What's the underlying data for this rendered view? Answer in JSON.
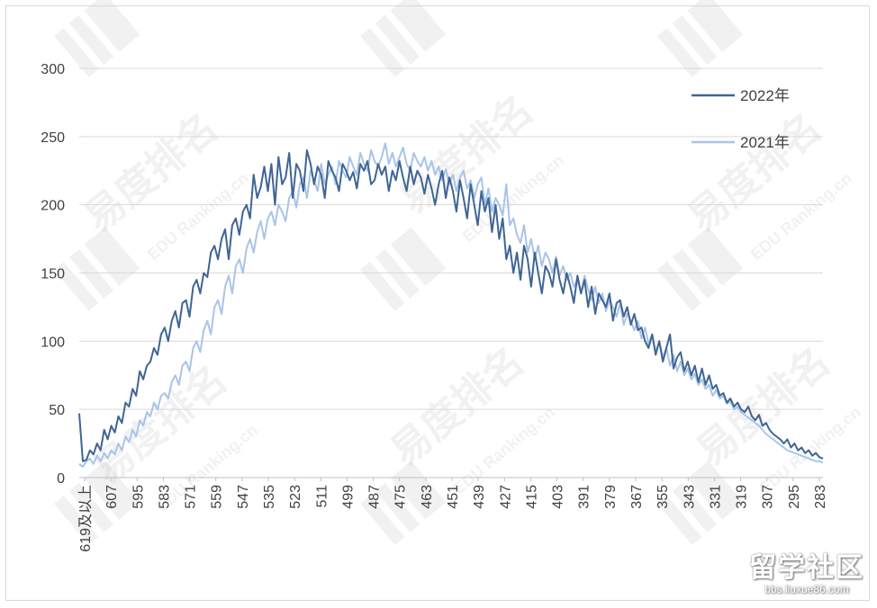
{
  "chart_data": {
    "type": "line",
    "title": "",
    "xlabel": "",
    "ylabel": "",
    "ylim": [
      0,
      300
    ],
    "yticks": [
      0,
      50,
      100,
      150,
      200,
      250,
      300
    ],
    "x_first_label": "619及以上",
    "x_start": 619,
    "x_end": 279,
    "x_tick_labels": [
      "619及以上",
      "607",
      "595",
      "583",
      "571",
      "559",
      "547",
      "535",
      "523",
      "511",
      "499",
      "487",
      "475",
      "463",
      "451",
      "439",
      "427",
      "415",
      "403",
      "391",
      "379",
      "367",
      "355",
      "343",
      "331",
      "319",
      "307",
      "295",
      "283"
    ],
    "grid": true,
    "legend_position": "top-right",
    "series": [
      {
        "name": "2022年",
        "color": "#3f6594",
        "values": [
          47,
          12,
          13,
          20,
          17,
          25,
          20,
          35,
          28,
          38,
          33,
          45,
          40,
          55,
          52,
          65,
          60,
          78,
          72,
          82,
          85,
          95,
          90,
          105,
          110,
          100,
          115,
          122,
          110,
          128,
          130,
          118,
          140,
          145,
          135,
          150,
          147,
          165,
          170,
          160,
          175,
          182,
          160,
          185,
          190,
          178,
          195,
          200,
          190,
          222,
          205,
          213,
          228,
          210,
          230,
          200,
          235,
          215,
          220,
          238,
          205,
          230,
          225,
          210,
          240,
          230,
          215,
          228,
          222,
          205,
          232,
          225,
          220,
          210,
          230,
          225,
          218,
          224,
          212,
          230,
          225,
          232,
          215,
          218,
          230,
          222,
          228,
          210,
          225,
          218,
          232,
          220,
          210,
          228,
          215,
          225,
          220,
          208,
          222,
          212,
          200,
          215,
          225,
          205,
          220,
          210,
          195,
          218,
          205,
          190,
          215,
          200,
          185,
          210,
          195,
          205,
          180,
          200,
          175,
          190,
          160,
          170,
          150,
          165,
          145,
          170,
          160,
          140,
          165,
          150,
          135,
          155,
          150,
          140,
          160,
          145,
          135,
          150,
          140,
          128,
          148,
          135,
          145,
          125,
          140,
          120,
          135,
          130,
          125,
          135,
          115,
          128,
          130,
          118,
          125,
          112,
          120,
          108,
          110,
          100,
          95,
          105,
          90,
          100,
          85,
          95,
          105,
          80,
          88,
          92,
          78,
          85,
          75,
          82,
          70,
          80,
          68,
          75,
          65,
          68,
          60,
          62,
          55,
          58,
          52,
          55,
          50,
          48,
          52,
          45,
          42,
          46,
          38,
          40,
          35,
          32,
          30,
          28,
          25,
          28,
          22,
          25,
          20,
          22,
          18,
          20,
          16,
          18,
          15,
          14
        ]
      },
      {
        "name": "2021年",
        "color": "#a9c4e8",
        "values": [
          10,
          8,
          12,
          14,
          10,
          16,
          12,
          18,
          14,
          20,
          17,
          25,
          20,
          30,
          26,
          35,
          30,
          42,
          38,
          48,
          45,
          55,
          50,
          60,
          62,
          58,
          70,
          75,
          68,
          82,
          85,
          78,
          95,
          100,
          92,
          108,
          115,
          105,
          125,
          130,
          120,
          140,
          148,
          135,
          155,
          160,
          150,
          168,
          175,
          165,
          180,
          188,
          175,
          190,
          195,
          185,
          200,
          195,
          188,
          205,
          210,
          198,
          215,
          220,
          205,
          225,
          218,
          210,
          230,
          215,
          222,
          228,
          215,
          232,
          225,
          220,
          235,
          228,
          222,
          238,
          230,
          225,
          240,
          232,
          228,
          235,
          245,
          230,
          238,
          228,
          235,
          242,
          230,
          225,
          238,
          232,
          228,
          235,
          225,
          232,
          222,
          228,
          218,
          226,
          215,
          222,
          210,
          220,
          225,
          212,
          218,
          205,
          215,
          220,
          200,
          212,
          195,
          205,
          200,
          192,
          215,
          185,
          190,
          178,
          172,
          185,
          165,
          175,
          160,
          170,
          155,
          165,
          160,
          150,
          162,
          148,
          155,
          145,
          150,
          140,
          145,
          135,
          148,
          138,
          130,
          140,
          128,
          135,
          122,
          130,
          125,
          118,
          128,
          112,
          120,
          115,
          108,
          115,
          102,
          110,
          98,
          105,
          92,
          100,
          88,
          95,
          82,
          90,
          78,
          85,
          75,
          80,
          72,
          76,
          68,
          72,
          65,
          68,
          60,
          64,
          58,
          60,
          54,
          56,
          50,
          52,
          48,
          46,
          44,
          42,
          40,
          38,
          35,
          32,
          30,
          28,
          26,
          24,
          22,
          20,
          19,
          18,
          17,
          16,
          15,
          14,
          13,
          12,
          12,
          11
        ]
      }
    ]
  },
  "watermark": {
    "text": "易度排名",
    "subtext": "EDU Ranking.cn"
  },
  "badge": {
    "title": "留学社区",
    "url": "bbs.liuxue86.com"
  }
}
